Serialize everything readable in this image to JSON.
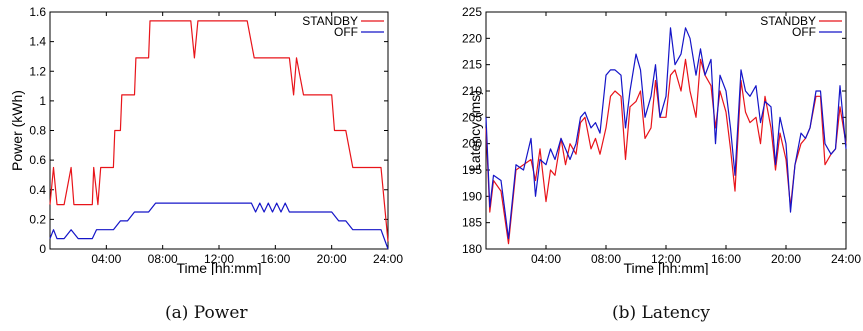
{
  "captions": [
    "(a) Power",
    "(b) Latency"
  ],
  "chart_data": [
    {
      "type": "line",
      "title": "",
      "xlabel": "Time [hh:mm]",
      "ylabel": "Power (kWh)",
      "xlim": [
        0,
        24
      ],
      "ylim": [
        0,
        1.6
      ],
      "xticks": [
        4,
        8,
        12,
        16,
        20,
        24
      ],
      "xtick_labels": [
        "04:00",
        "08:00",
        "12:00",
        "16:00",
        "20:00",
        "24:00"
      ],
      "yticks": [
        0,
        0.2,
        0.4,
        0.6,
        0.8,
        1,
        1.2,
        1.4,
        1.6
      ],
      "ytick_labels": [
        "0",
        "0.2",
        "0.4",
        "0.6",
        "0.8",
        "1",
        "1.2",
        "1.4",
        "1.6"
      ],
      "legend_position": "top-right",
      "grid": false,
      "series": [
        {
          "name": "STANDBY",
          "color": "#e8141a",
          "x": [
            0,
            0.25,
            0.5,
            1,
            1.5,
            1.7,
            2,
            2.5,
            3,
            3.1,
            3.4,
            3.6,
            4,
            4.5,
            4.6,
            5,
            5.1,
            5.5,
            6,
            6.1,
            6.5,
            7,
            7.1,
            7.5,
            8,
            9,
            10,
            10.25,
            10.5,
            11,
            12,
            13,
            14,
            14.5,
            15,
            16,
            17,
            17.3,
            17.5,
            18,
            19,
            20,
            20.2,
            21,
            21.5,
            22,
            23,
            23.5,
            24
          ],
          "y": [
            0.3,
            0.55,
            0.3,
            0.3,
            0.55,
            0.3,
            0.3,
            0.3,
            0.3,
            0.55,
            0.3,
            0.55,
            0.55,
            0.55,
            0.8,
            0.8,
            1.04,
            1.04,
            1.04,
            1.29,
            1.29,
            1.29,
            1.54,
            1.54,
            1.54,
            1.54,
            1.54,
            1.29,
            1.54,
            1.54,
            1.54,
            1.54,
            1.54,
            1.29,
            1.29,
            1.29,
            1.29,
            1.04,
            1.29,
            1.04,
            1.04,
            1.04,
            0.8,
            0.8,
            0.55,
            0.55,
            0.55,
            0.55,
            0.05
          ]
        },
        {
          "name": "OFF",
          "color": "#1515c8",
          "x": [
            0,
            0.25,
            0.5,
            1,
            1.5,
            2,
            2.5,
            3,
            3.3,
            3.6,
            4,
            4.5,
            5,
            5.5,
            6,
            6.5,
            7,
            7.5,
            8,
            9,
            10,
            11,
            12,
            13,
            14,
            14.3,
            14.6,
            14.9,
            15.2,
            15.5,
            15.8,
            16.1,
            16.4,
            16.7,
            17,
            18,
            19,
            20,
            20.5,
            21,
            21.5,
            22,
            22.5,
            23,
            23.5,
            24
          ],
          "y": [
            0.07,
            0.13,
            0.07,
            0.07,
            0.13,
            0.07,
            0.07,
            0.07,
            0.13,
            0.13,
            0.13,
            0.13,
            0.19,
            0.19,
            0.25,
            0.25,
            0.25,
            0.31,
            0.31,
            0.31,
            0.31,
            0.31,
            0.31,
            0.31,
            0.31,
            0.31,
            0.25,
            0.31,
            0.25,
            0.31,
            0.25,
            0.31,
            0.25,
            0.31,
            0.25,
            0.25,
            0.25,
            0.25,
            0.19,
            0.19,
            0.13,
            0.13,
            0.13,
            0.13,
            0.13,
            0.0
          ]
        }
      ]
    },
    {
      "type": "line",
      "title": "",
      "xlabel": "Time [hh:mm]",
      "ylabel": "Latency (ms)",
      "xlim": [
        0,
        24
      ],
      "ylim": [
        180,
        225
      ],
      "xticks": [
        4,
        8,
        12,
        16,
        20,
        24
      ],
      "xtick_labels": [
        "04:00",
        "08:00",
        "12:00",
        "16:00",
        "20:00",
        "24:00"
      ],
      "yticks": [
        180,
        185,
        190,
        195,
        200,
        205,
        210,
        215,
        220,
        225
      ],
      "ytick_labels": [
        "180",
        "185",
        "190",
        "195",
        "200",
        "205",
        "210",
        "215",
        "220",
        "225"
      ],
      "legend_position": "top-right",
      "grid": false,
      "series": [
        {
          "name": "STANDBY",
          "color": "#e8141a",
          "x": [
            0,
            0.25,
            0.5,
            1,
            1.5,
            2,
            2.5,
            3,
            3.3,
            3.6,
            4,
            4.3,
            4.6,
            5,
            5.3,
            5.6,
            6,
            6.3,
            6.6,
            7,
            7.3,
            7.6,
            8,
            8.3,
            8.6,
            9,
            9.3,
            9.6,
            10,
            10.3,
            10.6,
            11,
            11.3,
            11.6,
            12,
            12.3,
            12.6,
            13,
            13.3,
            13.6,
            14,
            14.3,
            14.6,
            15,
            15.3,
            15.6,
            16,
            16.3,
            16.6,
            17,
            17.3,
            17.6,
            18,
            18.3,
            18.6,
            19,
            19.3,
            19.6,
            20,
            20.3,
            20.6,
            21,
            21.3,
            21.6,
            22,
            22.3,
            22.6,
            23,
            23.3,
            23.6,
            24
          ],
          "y": [
            203,
            187,
            193,
            191,
            181,
            195,
            196,
            197,
            193,
            199,
            189,
            195,
            194,
            201,
            196,
            200,
            198,
            204,
            205,
            199,
            201,
            198,
            203,
            209,
            210,
            209,
            197,
            207,
            208,
            210,
            201,
            203,
            212,
            205,
            205,
            213,
            214,
            210,
            216,
            210,
            205,
            216,
            213,
            211,
            203,
            210,
            206,
            199,
            191,
            212,
            206,
            204,
            205,
            200,
            209,
            203,
            195,
            202,
            197,
            188,
            196,
            200,
            201,
            203,
            209,
            209,
            196,
            198,
            199,
            207,
            200
          ]
        },
        {
          "name": "OFF",
          "color": "#1515c8",
          "x": [
            0,
            0.25,
            0.5,
            1,
            1.5,
            2,
            2.5,
            3,
            3.3,
            3.6,
            4,
            4.3,
            4.6,
            5,
            5.3,
            5.6,
            6,
            6.3,
            6.6,
            7,
            7.3,
            7.6,
            8,
            8.3,
            8.6,
            9,
            9.3,
            9.6,
            10,
            10.3,
            10.6,
            11,
            11.3,
            11.6,
            12,
            12.3,
            12.6,
            13,
            13.3,
            13.6,
            14,
            14.3,
            14.6,
            15,
            15.3,
            15.6,
            16,
            16.3,
            16.6,
            17,
            17.3,
            17.6,
            18,
            18.3,
            18.6,
            19,
            19.3,
            19.6,
            20,
            20.3,
            20.6,
            21,
            21.3,
            21.6,
            22,
            22.3,
            22.6,
            23,
            23.3,
            23.6,
            24
          ],
          "y": [
            205,
            188,
            194,
            193,
            182,
            196,
            195,
            201,
            190,
            197,
            196,
            199,
            197,
            201,
            199,
            197,
            200,
            205,
            206,
            203,
            204,
            202,
            213,
            214,
            214,
            213,
            203,
            210,
            217,
            214,
            205,
            209,
            215,
            205,
            209,
            222,
            215,
            217,
            222,
            220,
            213,
            218,
            213,
            216,
            200,
            213,
            210,
            203,
            194,
            214,
            210,
            209,
            211,
            204,
            208,
            207,
            196,
            205,
            200,
            187,
            196,
            202,
            201,
            203,
            210,
            210,
            200,
            198,
            199,
            211,
            199
          ]
        }
      ]
    }
  ]
}
